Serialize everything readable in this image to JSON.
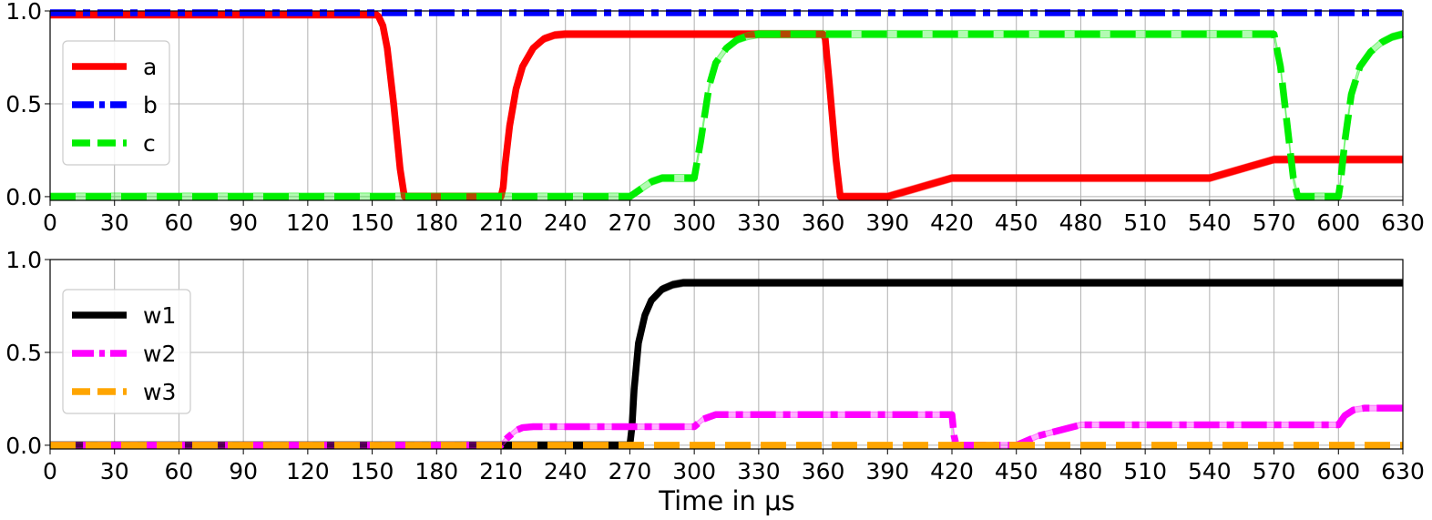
{
  "chart_data": [
    {
      "type": "line",
      "xlabel": "",
      "xlim": [
        0,
        630
      ],
      "ylim": [
        -0.02,
        1.0
      ],
      "xticks": [
        0,
        30,
        60,
        90,
        120,
        150,
        180,
        210,
        240,
        270,
        300,
        330,
        360,
        390,
        420,
        450,
        480,
        510,
        540,
        570,
        600,
        630
      ],
      "yticks": [
        0.0,
        0.5,
        1.0
      ],
      "grid": true,
      "legend_position": "upper-left",
      "series": [
        {
          "name": "a",
          "color": "#ff0000",
          "dash": "solid",
          "band": 0.04,
          "x": [
            0,
            152,
            153,
            155,
            157,
            160,
            163,
            165,
            210,
            211,
            212,
            214,
            217,
            220,
            225,
            230,
            235,
            240,
            360,
            361,
            363,
            366,
            368,
            390,
            420,
            540,
            570,
            630
          ],
          "y": [
            0.98,
            0.98,
            0.97,
            0.92,
            0.8,
            0.5,
            0.15,
            0.0,
            0.0,
            0.05,
            0.18,
            0.38,
            0.58,
            0.7,
            0.8,
            0.85,
            0.87,
            0.875,
            0.875,
            0.85,
            0.6,
            0.2,
            0.0,
            0.0,
            0.1,
            0.1,
            0.2,
            0.2
          ]
        },
        {
          "name": "b",
          "color": "#0000ff",
          "dash": "dashdot",
          "band": 0.0,
          "x": [
            0,
            630
          ],
          "y": [
            0.99,
            0.99
          ]
        },
        {
          "name": "c",
          "color": "#00ee00",
          "dash": "dashed",
          "band": 0.04,
          "x": [
            0,
            270,
            275,
            280,
            285,
            300,
            303,
            307,
            310,
            315,
            320,
            325,
            330,
            570,
            573,
            576,
            579,
            581,
            600,
            601,
            603,
            606,
            610,
            615,
            620,
            625,
            630
          ],
          "y": [
            0.0,
            0.0,
            0.04,
            0.08,
            0.1,
            0.1,
            0.3,
            0.6,
            0.72,
            0.8,
            0.845,
            0.865,
            0.875,
            0.875,
            0.7,
            0.4,
            0.1,
            0.0,
            0.0,
            0.08,
            0.3,
            0.55,
            0.7,
            0.78,
            0.83,
            0.86,
            0.875
          ]
        }
      ],
      "ytick_labels": [
        "0.0",
        "0.5",
        "1.0"
      ]
    },
    {
      "type": "line",
      "xlabel": "Time in μs",
      "xlim": [
        0,
        630
      ],
      "ylim": [
        -0.02,
        1.0
      ],
      "xticks": [
        0,
        30,
        60,
        90,
        120,
        150,
        180,
        210,
        240,
        270,
        300,
        330,
        360,
        390,
        420,
        450,
        480,
        510,
        540,
        570,
        600,
        630
      ],
      "yticks": [
        0.0,
        0.5,
        1.0
      ],
      "grid": true,
      "legend_position": "upper-left",
      "series": [
        {
          "name": "w1",
          "color": "#000000",
          "dash": "solid",
          "band": 0.04,
          "x": [
            0,
            270,
            271,
            272,
            274,
            277,
            280,
            285,
            290,
            295,
            300,
            630
          ],
          "y": [
            0.0,
            0.0,
            0.1,
            0.3,
            0.55,
            0.7,
            0.78,
            0.84,
            0.865,
            0.875,
            0.875,
            0.875
          ]
        },
        {
          "name": "w2",
          "color": "#ff00ff",
          "dash": "dashdot",
          "band": 0.03,
          "x": [
            0,
            210,
            213,
            217,
            220,
            225,
            300,
            304,
            310,
            420,
            421,
            422,
            450,
            460,
            480,
            600,
            603,
            607,
            612,
            630
          ],
          "y": [
            0.0,
            0.0,
            0.04,
            0.08,
            0.095,
            0.1,
            0.1,
            0.14,
            0.165,
            0.165,
            0.05,
            0.0,
            0.0,
            0.05,
            0.11,
            0.11,
            0.16,
            0.19,
            0.2,
            0.2
          ]
        },
        {
          "name": "w3",
          "color": "#ffa500",
          "dash": "dashed",
          "band": 0.0,
          "x": [
            0,
            630
          ],
          "y": [
            0.0,
            0.0
          ]
        }
      ],
      "ytick_labels": [
        "0.0",
        "0.5",
        "1.0"
      ]
    }
  ]
}
